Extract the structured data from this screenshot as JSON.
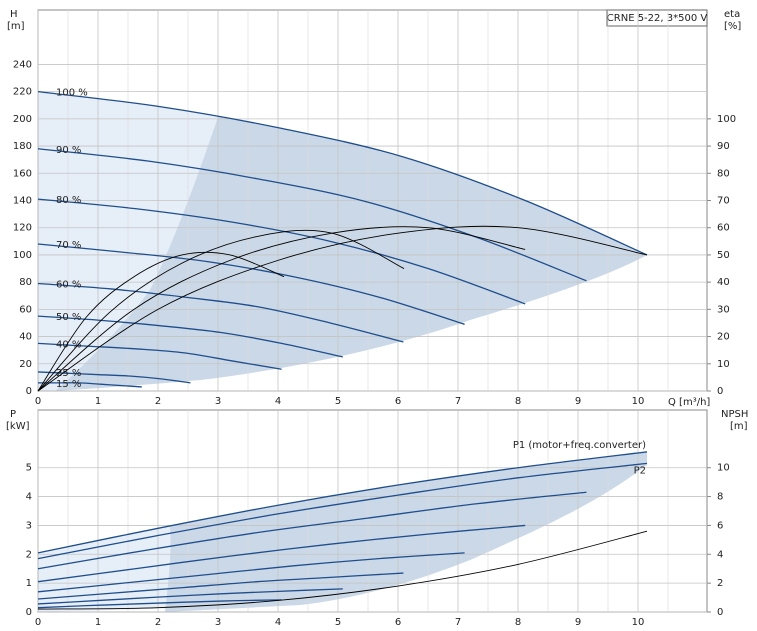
{
  "chart_data": [
    {
      "type": "line",
      "title": "CRNE 5-22, 3*500 V",
      "y_label": "H",
      "y_unit": "[m]",
      "y2_label": "eta",
      "y2_unit": "[%]",
      "x_label": "Q [m³/h]",
      "xlim": [
        0,
        11.15
      ],
      "xticks": [
        0,
        1,
        2,
        3,
        4,
        5,
        6,
        7,
        8,
        9,
        10
      ],
      "ylim": [
        0,
        280
      ],
      "yticks": [
        0,
        20,
        40,
        60,
        80,
        100,
        120,
        140,
        160,
        180,
        200,
        220,
        240
      ],
      "y2lim": [
        0,
        140
      ],
      "y2ticks": [
        0,
        10,
        20,
        30,
        40,
        50,
        60,
        70,
        80,
        90,
        100
      ],
      "grid": true,
      "series": [
        {
          "name": "100 %",
          "color": "#1f4e8c",
          "x": [
            0,
            2.03,
            4.06,
            6.09,
            8.12,
            10.15
          ],
          "values": [
            220,
            209,
            193,
            172,
            140,
            100
          ]
        },
        {
          "name": "90 %",
          "color": "#1f4e8c",
          "x": [
            0,
            1.83,
            3.65,
            5.48,
            7.31,
            9.14
          ],
          "values": [
            178,
            169,
            156,
            139,
            113,
            81
          ]
        },
        {
          "name": "80 %",
          "color": "#1f4e8c",
          "x": [
            0,
            1.62,
            3.25,
            4.87,
            6.5,
            8.12
          ],
          "values": [
            141,
            134,
            124,
            110,
            90,
            64
          ]
        },
        {
          "name": "70 %",
          "color": "#1f4e8c",
          "x": [
            0,
            1.42,
            2.84,
            4.26,
            5.68,
            7.11
          ],
          "values": [
            108,
            102,
            95,
            84,
            69,
            49
          ]
        },
        {
          "name": "60 %",
          "color": "#1f4e8c",
          "x": [
            0,
            1.22,
            2.44,
            3.65,
            4.87,
            6.09
          ],
          "values": [
            79,
            75,
            69,
            62,
            50,
            36
          ]
        },
        {
          "name": "50 %",
          "color": "#1f4e8c",
          "x": [
            0,
            1.02,
            2.03,
            3.05,
            4.06,
            5.08
          ],
          "values": [
            55,
            52,
            48,
            43,
            35,
            25
          ]
        },
        {
          "name": "40 %",
          "color": "#1f4e8c",
          "x": [
            0,
            0.81,
            1.62,
            2.44,
            3.25,
            4.06
          ],
          "values": [
            35,
            33,
            31,
            28,
            22,
            16
          ]
        },
        {
          "name": "25 %",
          "color": "#1f4e8c",
          "x": [
            0,
            0.51,
            1.02,
            1.52,
            2.03,
            2.54
          ],
          "values": [
            14,
            13,
            12,
            11,
            9,
            6
          ]
        },
        {
          "name": "15 %",
          "color": "#1f4e8c",
          "x": [
            0,
            0.35,
            0.69,
            1.04,
            1.38,
            1.73
          ],
          "values": [
            6,
            6,
            6,
            5,
            4,
            3
          ]
        },
        {
          "color": "#000000",
          "axis": "y2",
          "x": [
            0,
            2,
            4,
            6,
            8,
            10.15
          ],
          "values": [
            0,
            30,
            48,
            58,
            60,
            50
          ]
        },
        {
          "color": "#000000",
          "axis": "y2",
          "x": [
            0,
            1.6,
            3.2,
            4.9,
            6.5,
            8.12
          ],
          "values": [
            0,
            30,
            48,
            58,
            60,
            52
          ]
        },
        {
          "color": "#000000",
          "axis": "y2",
          "x": [
            0,
            1.2,
            2.4,
            3.7,
            4.9,
            6.1
          ],
          "values": [
            0,
            29,
            47,
            57,
            58,
            45
          ]
        },
        {
          "color": "#000000",
          "axis": "y2",
          "x": [
            0,
            0.8,
            1.6,
            2.4,
            3.2,
            4.1
          ],
          "values": [
            0,
            27,
            42,
            50,
            50,
            42
          ]
        }
      ]
    },
    {
      "type": "line",
      "y_label": "P",
      "y_unit": "[kW]",
      "y2_label": "NPSH",
      "y2_unit": "[m]",
      "xlim": [
        0,
        11.15
      ],
      "xticks": [
        0,
        1,
        2,
        3,
        4,
        5,
        6,
        7,
        8,
        9,
        10
      ],
      "ylim": [
        0,
        7
      ],
      "yticks": [
        0,
        1,
        2,
        3,
        4,
        5
      ],
      "y2lim": [
        0,
        14
      ],
      "y2ticks": [
        0,
        2,
        4,
        6,
        8,
        10
      ],
      "grid": true,
      "series": [
        {
          "name": "P1 (motor+freq.converter)",
          "color": "#1f4e8c",
          "x": [
            0,
            2,
            4,
            6,
            8,
            10.15
          ],
          "values": [
            2.05,
            2.9,
            3.7,
            4.4,
            5.0,
            5.55
          ]
        },
        {
          "name": "P2",
          "color": "#1f4e8c",
          "x": [
            0,
            2,
            4,
            6,
            8,
            10.15
          ],
          "values": [
            1.85,
            2.65,
            3.4,
            4.05,
            4.65,
            5.15
          ]
        },
        {
          "color": "#1f4e8c",
          "x": [
            0,
            1.83,
            3.65,
            5.48,
            7.31,
            9.14
          ],
          "values": [
            1.5,
            2.15,
            2.75,
            3.25,
            3.75,
            4.15
          ]
        },
        {
          "color": "#1f4e8c",
          "x": [
            0,
            1.62,
            3.25,
            4.87,
            6.5,
            8.12
          ],
          "values": [
            1.05,
            1.5,
            1.95,
            2.35,
            2.7,
            3.0
          ]
        },
        {
          "color": "#1f4e8c",
          "x": [
            0,
            1.42,
            2.84,
            4.26,
            5.68,
            7.11
          ],
          "values": [
            0.7,
            1.0,
            1.3,
            1.6,
            1.85,
            2.05
          ]
        },
        {
          "color": "#1f4e8c",
          "x": [
            0,
            1.22,
            2.44,
            3.65,
            4.87,
            6.09
          ],
          "values": [
            0.45,
            0.65,
            0.85,
            1.05,
            1.2,
            1.35
          ]
        },
        {
          "color": "#1f4e8c",
          "x": [
            0,
            1.02,
            2.03,
            3.05,
            4.06,
            5.08
          ],
          "values": [
            0.28,
            0.4,
            0.52,
            0.63,
            0.72,
            0.8
          ]
        },
        {
          "color": "#1f4e8c",
          "x": [
            0,
            0.81,
            1.62,
            2.44,
            3.25,
            4.06
          ],
          "values": [
            0.15,
            0.22,
            0.28,
            0.34,
            0.39,
            0.42
          ]
        },
        {
          "color": "#000000",
          "axis": "y2",
          "x": [
            0,
            2,
            4,
            6,
            8,
            10.15
          ],
          "values": [
            0.2,
            0.3,
            0.8,
            1.8,
            3.3,
            5.6
          ]
        }
      ]
    }
  ]
}
